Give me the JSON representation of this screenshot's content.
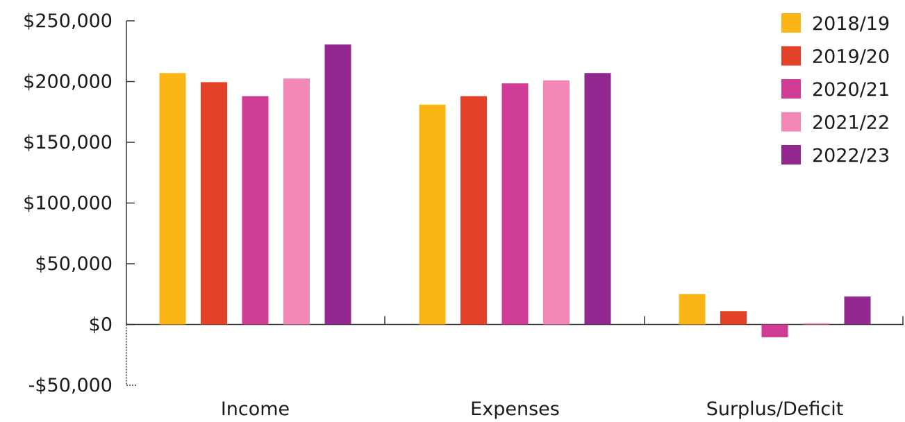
{
  "chart_data": {
    "type": "bar",
    "title": "",
    "xlabel": "",
    "ylabel": "",
    "categories": [
      "Income",
      "Expenses",
      "Surplus/Deficit"
    ],
    "series": [
      {
        "name": "2018/19",
        "color": "#fbb616",
        "values": [
          207000,
          181000,
          25000
        ]
      },
      {
        "name": "2019/20",
        "color": "#e34128",
        "values": [
          199500,
          188000,
          11000
        ]
      },
      {
        "name": "2020/21",
        "color": "#d03d96",
        "values": [
          188000,
          198500,
          -10500
        ]
      },
      {
        "name": "2021/22",
        "color": "#f388b7",
        "values": [
          202500,
          201000,
          1000
        ]
      },
      {
        "name": "2022/23",
        "color": "#92278f",
        "values": [
          230500,
          207000,
          23000
        ]
      }
    ],
    "ylim": [
      -50000,
      250000
    ],
    "yticks": [
      -50000,
      0,
      50000,
      100000,
      150000,
      200000,
      250000
    ],
    "ytick_labels": [
      "-$50,000",
      "$0",
      "$50,000",
      "$100,000",
      "$150,000",
      "$200,000",
      "$250,000"
    ],
    "grid": false,
    "legend_position": "top-right",
    "axis_color": "#333333"
  }
}
